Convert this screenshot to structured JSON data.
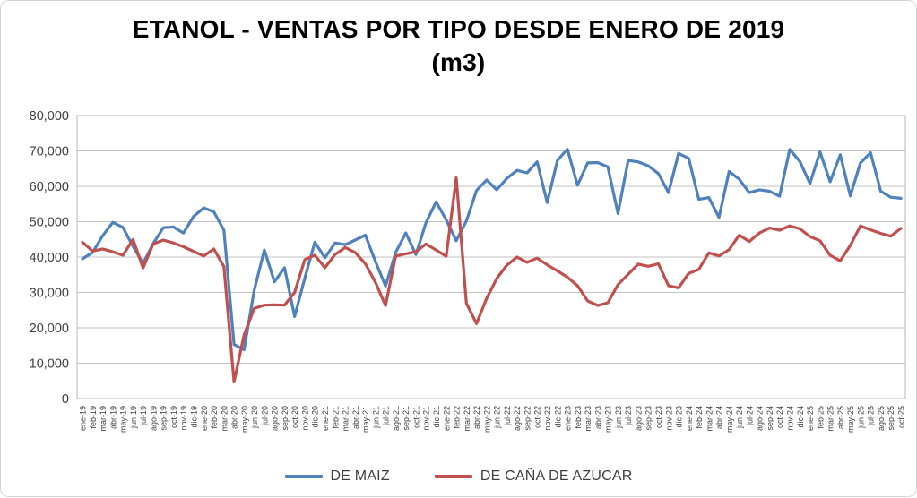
{
  "chart_data": {
    "type": "line",
    "title": "ETANOL - VENTAS POR TIPO DESDE ENERO DE 2019",
    "title_unit": "(m3)",
    "categories": [
      "ene-19",
      "feb-19",
      "mar-19",
      "abr-19",
      "may-19",
      "jun-19",
      "jul-19",
      "ago-19",
      "sep-19",
      "oct-19",
      "nov-19",
      "dic-19",
      "ene-20",
      "feb-20",
      "mar-20",
      "abr-20",
      "may-20",
      "jun-20",
      "jul-20",
      "ago-20",
      "sep-20",
      "oct-20",
      "nov-20",
      "dic-20",
      "ene-21",
      "feb-21",
      "mar-21",
      "abr-21",
      "may-21",
      "jun-21",
      "jul-21",
      "ago-21",
      "sep-21",
      "oct-21",
      "nov-21",
      "dic-21",
      "ene-22",
      "feb-22",
      "mar-22",
      "abr-22",
      "may-22",
      "jun-22",
      "jul-22",
      "ago-22",
      "sep-22",
      "oct-22",
      "nov-22",
      "dic-22",
      "ene-23",
      "feb-23",
      "mar-23",
      "abr-23",
      "may-23",
      "jun-23",
      "jul-23",
      "ago-23",
      "sep-23",
      "oct-23",
      "nov-23",
      "dic-23",
      "ene-24",
      "feb-24",
      "mar-24",
      "abr-24",
      "may-24",
      "jun-24",
      "jul-24",
      "ago-24",
      "sep-24",
      "oct-24",
      "nov-24",
      "dic-24",
      "ene-25",
      "feb-25",
      "mar-25",
      "abr-25",
      "may-25",
      "jun-25",
      "jul-25",
      "ago-25",
      "sep-25",
      "oct-25"
    ],
    "series": [
      {
        "name": "DE MAIZ",
        "color": "#4F81BD",
        "values": [
          39500,
          41300,
          46000,
          49800,
          48400,
          43000,
          38200,
          43800,
          48300,
          48500,
          46800,
          51500,
          53900,
          52800,
          47600,
          15300,
          13800,
          30600,
          42000,
          33000,
          37000,
          23200,
          34000,
          44200,
          39800,
          44000,
          43500,
          44800,
          46200,
          38700,
          31800,
          41300,
          46800,
          40700,
          49700,
          55600,
          50500,
          44600,
          50200,
          58800,
          61800,
          59000,
          62200,
          64500,
          63800,
          66900,
          55400,
          67300,
          70500,
          60300,
          66600,
          66700,
          65500,
          52300,
          67300,
          66900,
          65800,
          63600,
          58200,
          69300,
          67900,
          56300,
          56800,
          51200,
          64200,
          62000,
          58200,
          59000,
          58600,
          57200,
          70400,
          67000,
          60800,
          69700,
          61300,
          68900,
          57300,
          66600,
          69500,
          58600,
          56900,
          56600
        ]
      },
      {
        "name": "DE CAÑA DE AZUCAR",
        "color": "#C0504D",
        "values": [
          44200,
          41700,
          42300,
          41500,
          40500,
          45000,
          36900,
          43700,
          44800,
          44000,
          42900,
          41600,
          40300,
          42300,
          37300,
          4700,
          18000,
          25500,
          26400,
          26500,
          26400,
          30000,
          39300,
          40500,
          37000,
          40700,
          42700,
          41300,
          38100,
          32800,
          26300,
          40300,
          40900,
          41500,
          43700,
          42000,
          40200,
          62400,
          26900,
          21200,
          28300,
          33900,
          37700,
          40000,
          38500,
          39700,
          37800,
          36100,
          34300,
          31900,
          27600,
          26300,
          27100,
          32200,
          35100,
          38000,
          37400,
          38100,
          31900,
          31300,
          35400,
          36500,
          41200,
          40300,
          42100,
          46200,
          44400,
          46800,
          48200,
          47600,
          48800,
          48000,
          45800,
          44600,
          40500,
          38900,
          43300,
          48800,
          47700,
          46700,
          45900,
          48100
        ]
      }
    ],
    "ylim": [
      0,
      80000
    ],
    "y_tick_step": 10000,
    "y_tick_labels": [
      "0",
      "10,000",
      "20,000",
      "30,000",
      "40,000",
      "50,000",
      "60,000",
      "70,000",
      "80,000"
    ],
    "grid": true,
    "legend_position": "bottom"
  },
  "colors": {
    "gridline": "#c3c3c3",
    "plot_border": "#b7b7b7",
    "axis_text": "#3f3f3f"
  }
}
